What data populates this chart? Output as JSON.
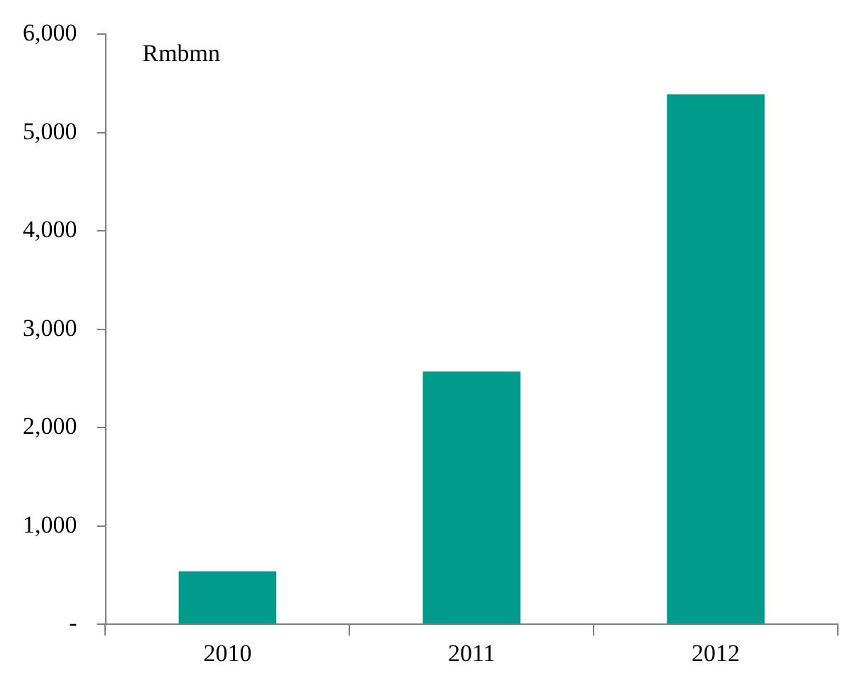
{
  "chart_data": {
    "type": "bar",
    "ylabel": "Rmbmn",
    "categories": [
      "2010",
      "2011",
      "2012"
    ],
    "values": [
      540,
      2570,
      5390
    ],
    "color": "#009b8a",
    "ylim": [
      0,
      6000
    ],
    "yticks": [
      {
        "value": 0,
        "label": "-"
      },
      {
        "value": 1000,
        "label": "1,000"
      },
      {
        "value": 2000,
        "label": "2,000"
      },
      {
        "value": 3000,
        "label": "3,000"
      },
      {
        "value": 4000,
        "label": "4,000"
      },
      {
        "value": 5000,
        "label": "5,000"
      },
      {
        "value": 6000,
        "label": "6,000"
      }
    ],
    "grid": false,
    "legend": false
  }
}
